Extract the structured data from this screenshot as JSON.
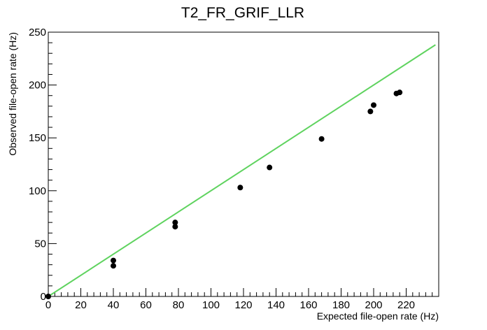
{
  "chart_data": {
    "type": "scatter",
    "title": "T2_FR_GRIF_LLR",
    "xlabel": "Expected file-open rate (Hz)",
    "ylabel": "Observed file-open rate (Hz)",
    "xlim": [
      0,
      240
    ],
    "ylim": [
      0,
      250
    ],
    "x_ticks": [
      0,
      20,
      40,
      60,
      80,
      100,
      120,
      140,
      160,
      180,
      200,
      220
    ],
    "x_tick_labels": [
      "0",
      "20",
      "40",
      "60",
      "80",
      "100",
      "120",
      "140",
      "160",
      "180",
      "200",
      "220"
    ],
    "y_ticks": [
      0,
      50,
      100,
      150,
      200,
      250
    ],
    "y_tick_labels": [
      "0",
      "50",
      "100",
      "150",
      "200",
      "250"
    ],
    "points": [
      {
        "x": 0,
        "y": 0
      },
      {
        "x": 40,
        "y": 34
      },
      {
        "x": 40,
        "y": 29
      },
      {
        "x": 78,
        "y": 70
      },
      {
        "x": 78,
        "y": 66
      },
      {
        "x": 118,
        "y": 103
      },
      {
        "x": 136,
        "y": 122
      },
      {
        "x": 168,
        "y": 149
      },
      {
        "x": 198,
        "y": 175
      },
      {
        "x": 200,
        "y": 181
      },
      {
        "x": 214,
        "y": 192
      },
      {
        "x": 216,
        "y": 193
      }
    ],
    "reference_line": {
      "x": [
        0,
        238
      ],
      "y": [
        0,
        238
      ],
      "color": "#5fd35f"
    },
    "marker_color": "#000000",
    "grid": false,
    "legend": "none"
  }
}
